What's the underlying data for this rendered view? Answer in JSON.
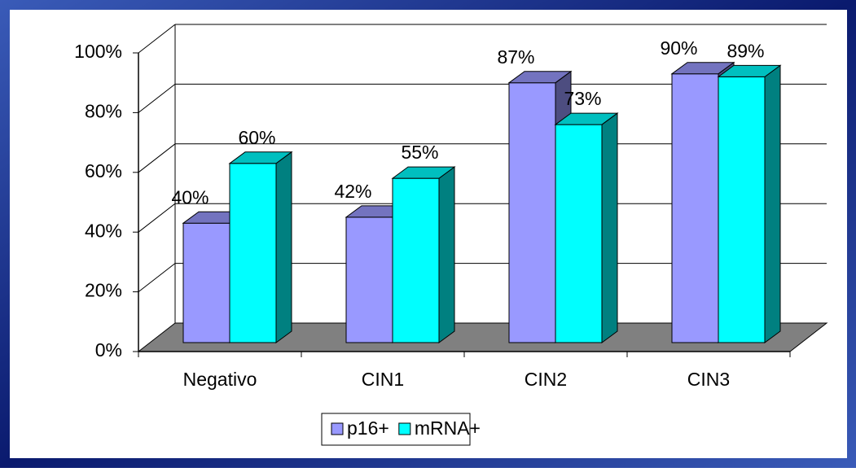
{
  "chart_data": {
    "type": "bar3d",
    "categories": [
      "Negativo",
      "CIN1",
      "CIN2",
      "CIN3"
    ],
    "series": [
      {
        "name": "p16+",
        "color": "#9999ff",
        "values": [
          40,
          42,
          87,
          90
        ],
        "value_labels": [
          "40%",
          "42%",
          "87%",
          "90%"
        ]
      },
      {
        "name": "mRNA+",
        "color": "#00ffff",
        "values": [
          60,
          55,
          73,
          89
        ],
        "value_labels": [
          "60%",
          "55%",
          "73%",
          "89%"
        ]
      }
    ],
    "ylim": [
      0,
      100
    ],
    "yticks": [
      {
        "value": 0,
        "label": "0%"
      },
      {
        "value": 20,
        "label": "20%"
      },
      {
        "value": 40,
        "label": "40%"
      },
      {
        "value": 60,
        "label": "60%"
      },
      {
        "value": 80,
        "label": "80%"
      },
      {
        "value": 100,
        "label": "100%"
      }
    ],
    "grid": true,
    "legend": "bottom"
  }
}
